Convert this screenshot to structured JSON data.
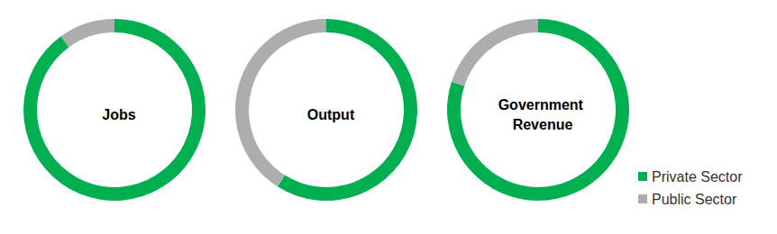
{
  "chart_data": [
    {
      "type": "pie",
      "title": "Jobs",
      "categories": [
        "Private Sector",
        "Public Sector"
      ],
      "values": [
        90,
        10
      ],
      "colors": [
        "#00b050",
        "#adadad"
      ],
      "legend": "lower right"
    },
    {
      "type": "pie",
      "title": "Output",
      "categories": [
        "Private Sector",
        "Public Sector"
      ],
      "values": [
        59,
        41
      ],
      "colors": [
        "#00b050",
        "#adadad"
      ],
      "legend": "lower right"
    },
    {
      "type": "pie",
      "title": "Government Revenue",
      "categories": [
        "Private Sector",
        "Public Sector"
      ],
      "values": [
        80,
        20
      ],
      "colors": [
        "#00b050",
        "#adadad"
      ],
      "legend": "lower right"
    }
  ]
}
